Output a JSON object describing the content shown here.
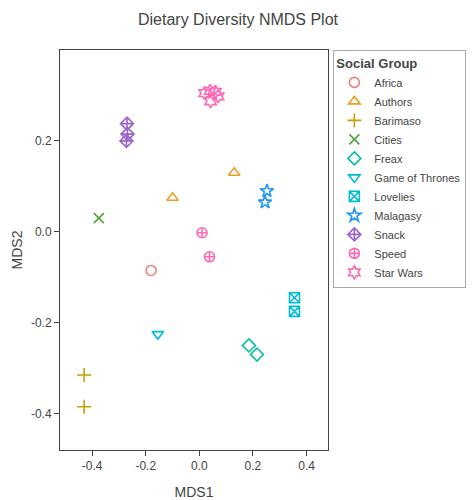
{
  "chart_data": {
    "type": "scatter",
    "title": "Dietary Diversity NMDS Plot",
    "xlabel": "MDS1",
    "ylabel": "MDS2",
    "xlim": [
      -0.52,
      0.48
    ],
    "ylim": [
      -0.48,
      0.4
    ],
    "xticks": [
      -0.4,
      -0.2,
      {
        "value": 0.0,
        "label": "0.0"
      },
      0.2,
      0.4
    ],
    "yticks": [
      -0.4,
      -0.2,
      {
        "value": 0.0,
        "label": "0.0"
      },
      0.2
    ],
    "grid": false,
    "legend": "right",
    "legend_title": "Social Group",
    "series": [
      {
        "name": "Africa",
        "color": "#F08080",
        "marker": "circle",
        "x": [
          -0.18
        ],
        "y": [
          -0.085
        ]
      },
      {
        "name": "Authors",
        "color": "#E8A020",
        "marker": "triangle-up",
        "x": [
          -0.1,
          0.13
        ],
        "y": [
          0.075,
          0.13
        ]
      },
      {
        "name": "Barimaso",
        "color": "#C8A000",
        "marker": "plus",
        "x": [
          -0.43,
          -0.43
        ],
        "y": [
          -0.315,
          -0.385
        ]
      },
      {
        "name": "Cities",
        "color": "#50A040",
        "marker": "x",
        "x": [
          -0.375
        ],
        "y": [
          0.03
        ]
      },
      {
        "name": "Freax",
        "color": "#00BFA5",
        "marker": "diamond",
        "x": [
          0.185,
          0.215
        ],
        "y": [
          -0.25,
          -0.27
        ]
      },
      {
        "name": "Game of Thrones",
        "color": "#00BCD4",
        "marker": "triangle-down",
        "x": [
          -0.155
        ],
        "y": [
          -0.225
        ]
      },
      {
        "name": "Lovelies",
        "color": "#00BCD4",
        "marker": "square-x",
        "x": [
          0.355,
          0.355
        ],
        "y": [
          -0.145,
          -0.175
        ]
      },
      {
        "name": "Malagasy",
        "color": "#2196F3",
        "marker": "star",
        "x": [
          0.252,
          0.245
        ],
        "y": [
          0.09,
          0.065
        ]
      },
      {
        "name": "Snack",
        "color": "#9966CC",
        "marker": "diamond-cross",
        "x": [
          -0.27,
          -0.268,
          -0.272
        ],
        "y": [
          0.238,
          0.215,
          0.2
        ]
      },
      {
        "name": "Speed",
        "color": "#FF69B4",
        "marker": "circle-cross",
        "x": [
          0.01,
          0.038
        ],
        "y": [
          -0.002,
          -0.055
        ]
      },
      {
        "name": "Star Wars",
        "color": "#FF69B4",
        "marker": "hexagram",
        "x": [
          0.02,
          0.04,
          0.06,
          0.07,
          0.042
        ],
        "y": [
          0.305,
          0.31,
          0.308,
          0.298,
          0.287
        ]
      }
    ]
  }
}
